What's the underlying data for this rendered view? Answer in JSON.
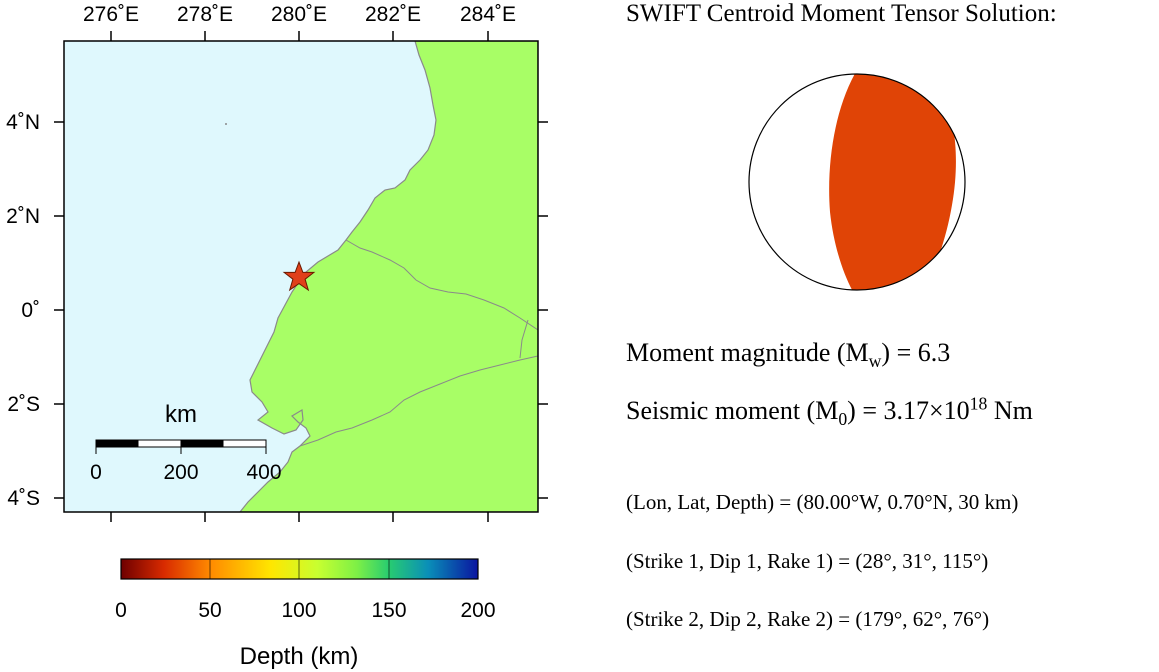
{
  "map": {
    "lon_ticks": [
      "276˚E",
      "278˚E",
      "280˚E",
      "282˚E",
      "284˚E"
    ],
    "lat_ticks": [
      "4˚N",
      "2˚N",
      "0˚",
      "2˚S",
      "4˚S"
    ],
    "epicenter": {
      "lon_label": "80.00°W",
      "lat_label": "0.70°N"
    },
    "scale_bar": {
      "unit": "km",
      "ticks": [
        "0",
        "200",
        "400"
      ]
    },
    "colors": {
      "ocean": "#dff8fd",
      "land": "#a8fe66",
      "star": "#e0401a",
      "coast": "#8a8a8a"
    }
  },
  "depth_colorbar": {
    "tick_labels": [
      "0",
      "50",
      "100",
      "150",
      "200"
    ],
    "label": "Depth (km)",
    "colors": [
      "#6e0000",
      "#e03a00",
      "#ff9900",
      "#ffee00",
      "#b9ff2a",
      "#32d36e",
      "#0a8ab8",
      "#0a1aa0"
    ]
  },
  "solution": {
    "title": "SWIFT Centroid Moment Tensor Solution:",
    "mw_prefix": "Moment magnitude (M",
    "mw_sub": "w",
    "mw_suffix": ") = 6.3",
    "m0_prefix": "Seismic moment (M",
    "m0_sub": "0",
    "m0_mid": ") = 3.17×10",
    "m0_sup": "18",
    "m0_suffix": " Nm",
    "location": "(Lon, Lat, Depth) = (80.00°W, 0.70°N, 30 km)",
    "plane1": "(Strike 1, Dip 1, Rake 1) = (28°, 31°, 115°)",
    "plane2": "(Strike 2, Dip 2, Rake 2) = (179°, 62°, 76°)"
  },
  "beachball": {
    "compression_color": "#e04406",
    "dilatation_color": "#ffffff"
  }
}
